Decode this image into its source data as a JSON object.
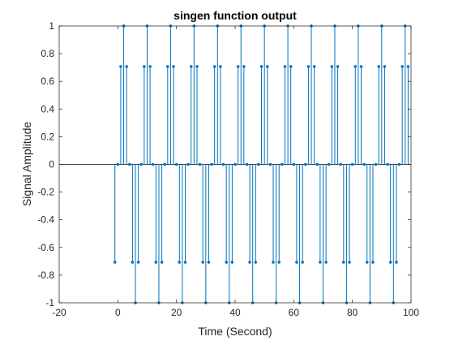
{
  "chart_data": {
    "type": "stem",
    "title": "singen function output",
    "xlabel": "Time (Second)",
    "ylabel": "Signal Amplitude",
    "xlim": [
      -20,
      100
    ],
    "ylim": [
      -1,
      1
    ],
    "x_ticks": [
      -20,
      0,
      20,
      40,
      60,
      80,
      100
    ],
    "y_ticks": [
      -1,
      -0.8,
      -0.6,
      -0.4,
      -0.2,
      0,
      0.2,
      0.4,
      0.6,
      0.8,
      1
    ],
    "x_tick_labels": [
      "-20",
      "0",
      "20",
      "40",
      "60",
      "80",
      "100"
    ],
    "y_tick_labels": [
      "-1",
      "-0.8",
      "-0.6",
      "-0.4",
      "-0.2",
      "0",
      "0.2",
      "0.4",
      "0.6",
      "0.8",
      "1"
    ],
    "grid": false,
    "baseline": 0,
    "series": [
      {
        "color": "#0072BD",
        "x": [
          -1,
          0,
          1,
          2,
          3,
          4,
          5,
          6,
          7,
          8,
          9,
          10,
          11,
          12,
          13,
          14,
          15,
          16,
          17,
          18,
          19,
          20,
          21,
          22,
          23,
          24,
          25,
          26,
          27,
          28,
          29,
          30,
          31,
          32,
          33,
          34,
          35,
          36,
          37,
          38,
          39,
          40,
          41,
          42,
          43,
          44,
          45,
          46,
          47,
          48,
          49,
          50,
          51,
          52,
          53,
          54,
          55,
          56,
          57,
          58,
          59,
          60,
          61,
          62,
          63,
          64,
          65,
          66,
          67,
          68,
          69,
          70,
          71,
          72,
          73,
          74,
          75,
          76,
          77,
          78,
          79,
          80,
          81,
          82,
          83,
          84,
          85,
          86,
          87,
          88,
          89,
          90,
          91,
          92,
          93,
          94,
          95,
          96,
          97,
          98,
          99
        ],
        "y": [
          -0.707,
          0,
          0.707,
          1,
          0.707,
          0,
          -0.707,
          -1,
          -0.707,
          0,
          0.707,
          1,
          0.707,
          0,
          -0.707,
          -1,
          -0.707,
          0,
          0.707,
          1,
          0.707,
          0,
          -0.707,
          -1,
          -0.707,
          0,
          0.707,
          1,
          0.707,
          0,
          -0.707,
          -1,
          -0.707,
          0,
          0.707,
          1,
          0.707,
          0,
          -0.707,
          -1,
          -0.707,
          0,
          0.707,
          1,
          0.707,
          0,
          -0.707,
          -1,
          -0.707,
          0,
          0.707,
          1,
          0.707,
          0,
          -0.707,
          -1,
          -0.707,
          0,
          0.707,
          1,
          0.707,
          0,
          -0.707,
          -1,
          -0.707,
          0,
          0.707,
          1,
          0.707,
          0,
          -0.707,
          -1,
          -0.707,
          0,
          0.707,
          1,
          0.707,
          0,
          -0.707,
          -1,
          -0.707,
          0,
          0.707,
          1,
          0.707,
          0,
          -0.707,
          -1,
          -0.707,
          0,
          0.707,
          1,
          0.707,
          0,
          -0.707,
          -1,
          -0.707,
          0,
          0.707,
          1,
          0.707
        ]
      }
    ]
  }
}
